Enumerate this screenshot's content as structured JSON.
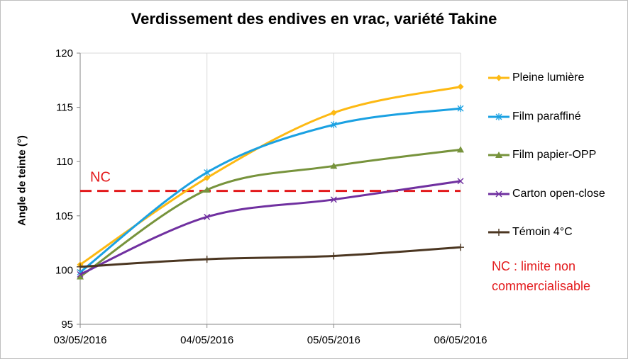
{
  "chart_data": {
    "type": "line",
    "title": "Verdissement des endives en vrac, variété Takine",
    "xlabel": "",
    "ylabel": "Angle de teinte  (°)",
    "categories": [
      "03/05/2016",
      "04/05/2016",
      "05/05/2016",
      "06/05/2016"
    ],
    "ylim": [
      95,
      120
    ],
    "yticks": [
      95,
      100,
      105,
      110,
      115,
      120
    ],
    "grid": "vertical",
    "legend_position": "right",
    "series": [
      {
        "name": "Pleine lumière",
        "values": [
          100.5,
          108.5,
          114.5,
          116.9
        ],
        "color": "#fdb913",
        "marker": "diamond"
      },
      {
        "name": "Film paraffiné",
        "values": [
          99.8,
          109.0,
          113.4,
          114.9
        ],
        "color": "#1ba1e2",
        "marker": "star"
      },
      {
        "name": "Film papier-OPP",
        "values": [
          99.4,
          107.4,
          109.6,
          111.1
        ],
        "color": "#77933c",
        "marker": "triangle"
      },
      {
        "name": "Carton open-close",
        "values": [
          99.6,
          104.9,
          106.5,
          108.2
        ],
        "color": "#7030a0",
        "marker": "x"
      },
      {
        "name": "Témoin 4°C",
        "values": [
          100.3,
          101.0,
          101.3,
          102.1
        ],
        "color": "#4b3621",
        "marker": "plus"
      }
    ],
    "reference_line": {
      "label": "NC",
      "value": 107.3,
      "color": "#e31a1c",
      "style": "dashed"
    },
    "annotation": "NC : limite non commercialisable"
  }
}
